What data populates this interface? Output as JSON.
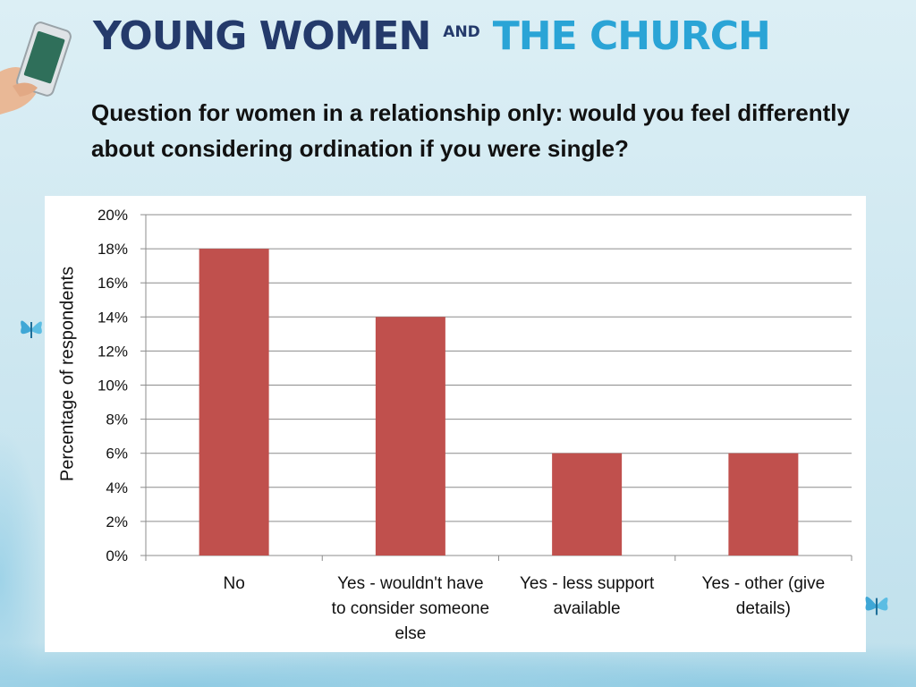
{
  "header": {
    "brand_part1": "YOUNG WOMEN",
    "brand_and": "AND",
    "brand_part2": "THE CHURCH"
  },
  "question": "Question for women in a relationship only: would you feel differently about considering ordination if you were single?",
  "colors": {
    "bar": "#c0504d",
    "brand_dark": "#243a6b",
    "brand_light": "#2aa4d6",
    "grid": "#8c8c8c"
  },
  "chart_data": {
    "type": "bar",
    "categories": [
      "No",
      "Yes - wouldn't have to consider someone else",
      "Yes - less support available",
      "Yes - other (give details)"
    ],
    "category_lines": [
      [
        "No"
      ],
      [
        "Yes - wouldn't have",
        "to consider someone",
        "else"
      ],
      [
        "Yes - less support",
        "available"
      ],
      [
        "Yes - other (give",
        "details)"
      ]
    ],
    "values": [
      18,
      14,
      6,
      6
    ],
    "ylabel": "Percentage of respondents",
    "xlabel": "",
    "ylim": [
      0,
      20
    ],
    "yticks": [
      0,
      2,
      4,
      6,
      8,
      10,
      12,
      14,
      16,
      18,
      20
    ],
    "ytick_labels": [
      "0%",
      "2%",
      "4%",
      "6%",
      "8%",
      "10%",
      "12%",
      "14%",
      "16%",
      "18%",
      "20%"
    ],
    "grid": true,
    "legend": "none"
  }
}
